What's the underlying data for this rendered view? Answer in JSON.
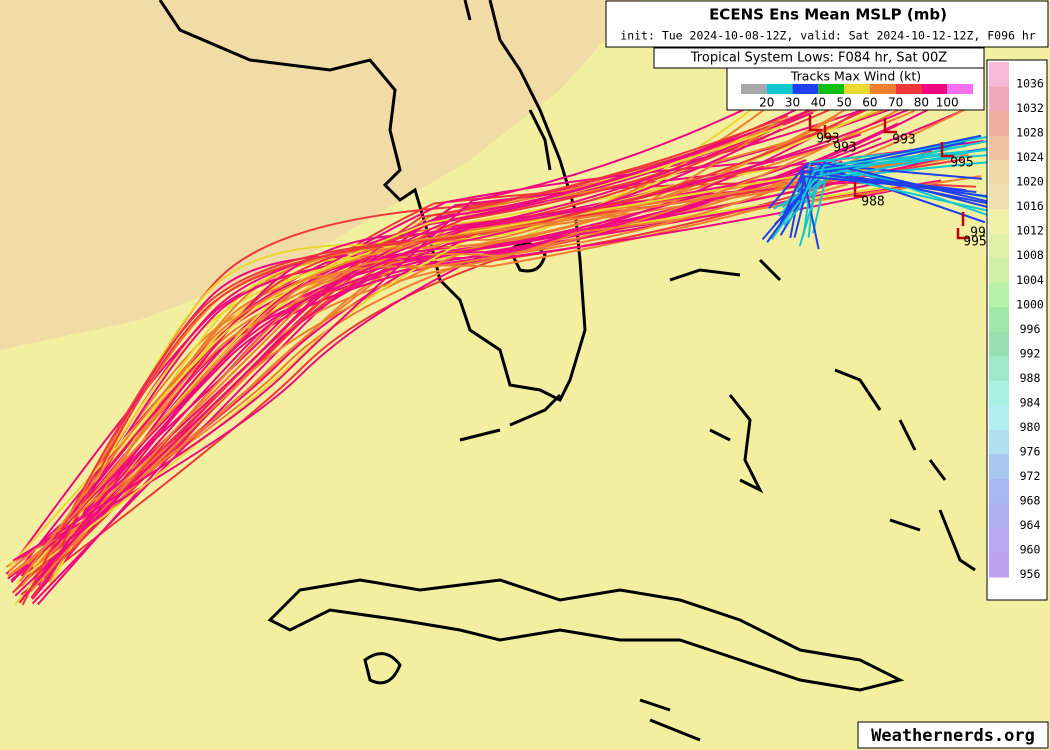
{
  "header": {
    "title": "ECENS Ens Mean MSLP (mb)",
    "subtitle": "init: Tue 2024-10-08-12Z, valid: Sat 2024-10-12-12Z, F096 hr"
  },
  "lows_box": {
    "title": "Tropical System Lows: F084 hr, Sat 00Z"
  },
  "wind_legend": {
    "title": "Tracks Max Wind (kt)",
    "labels": [
      "20",
      "30",
      "40",
      "50",
      "60",
      "70",
      "80",
      "100"
    ],
    "colors": [
      "#a8a8a8",
      "#10c8d0",
      "#2040f0",
      "#10c010",
      "#e8d830",
      "#f08030",
      "#f03838",
      "#f00880",
      "#f870f0"
    ]
  },
  "colorbar": {
    "labels": [
      "1036",
      "1032",
      "1028",
      "1024",
      "1020",
      "1016",
      "1012",
      "1008",
      "1004",
      "1000",
      "996",
      "992",
      "988",
      "984",
      "980",
      "976",
      "972",
      "968",
      "964",
      "960",
      "956"
    ],
    "colors": [
      "#f8b8d8",
      "#f0a8b8",
      "#f0b0a0",
      "#f0c0a0",
      "#f0d8a8",
      "#f0e0b0",
      "#f0f0a8",
      "#e0f0a8",
      "#d0f0a8",
      "#b8f0a8",
      "#a0e8a8",
      "#98e0b0",
      "#a0e8c8",
      "#a8f0e0",
      "#b0f0f0",
      "#b0e0f0",
      "#a8c8f0",
      "#a8b8f0",
      "#b0b0f0",
      "#b8a8f0",
      "#c0a0f0"
    ]
  },
  "pressure_labels": [
    "993",
    "993",
    "993",
    "995",
    "988",
    "995",
    "99"
  ],
  "watermark": "Weathernerds.org"
}
